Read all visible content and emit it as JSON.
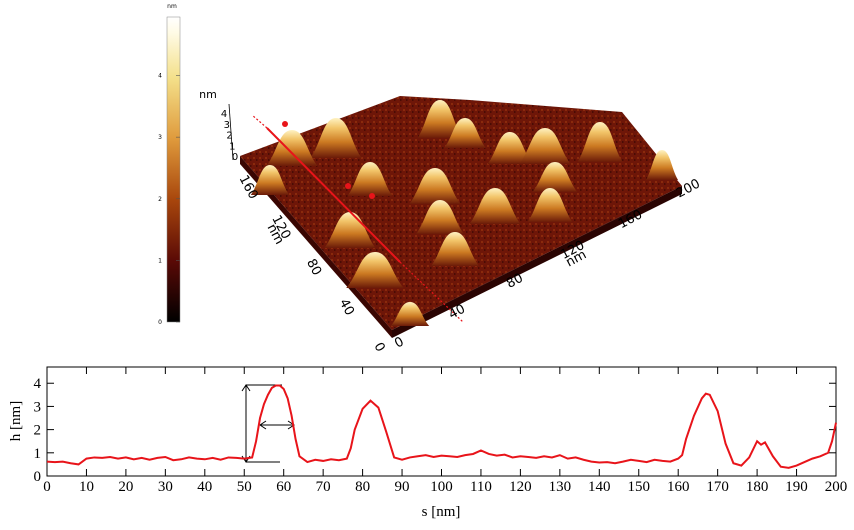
{
  "chart_data": [
    {
      "type": "surface3d",
      "colorbar": {
        "unit": "nm",
        "lim": [
          0,
          4.95
        ],
        "ticks": [
          0,
          1,
          2,
          3,
          4
        ]
      },
      "x_axis": {
        "label": "nm",
        "ticks": [
          0,
          40,
          80,
          120,
          160,
          200
        ]
      },
      "y_axis": {
        "label": "nm",
        "ticks": [
          0,
          40,
          80,
          120,
          160
        ]
      },
      "z_axis": {
        "label": "nm",
        "ticks": [
          0,
          1,
          2,
          3,
          4
        ]
      }
    },
    {
      "type": "line",
      "xlabel": "s [nm]",
      "ylabel": "h [nm]",
      "color": "#e8141a",
      "xlim": [
        0,
        200
      ],
      "ylim": [
        0,
        4.7
      ],
      "xticks": [
        0,
        10,
        20,
        30,
        40,
        50,
        60,
        70,
        80,
        90,
        100,
        110,
        120,
        130,
        140,
        150,
        160,
        170,
        180,
        190,
        200
      ],
      "yticks": [
        0,
        1,
        2,
        3,
        4
      ],
      "x": [
        0,
        2,
        4,
        6,
        8,
        10,
        12,
        14,
        16,
        18,
        20,
        22,
        24,
        26,
        28,
        30,
        32,
        34,
        36,
        38,
        40,
        42,
        44,
        46,
        48,
        50,
        52,
        53,
        54,
        55,
        56,
        57,
        58,
        59,
        60,
        61,
        62,
        63,
        64,
        66,
        68,
        70,
        72,
        74,
        76,
        77,
        78,
        80,
        82,
        84,
        86,
        88,
        90,
        92,
        94,
        96,
        98,
        100,
        102,
        104,
        106,
        108,
        110,
        112,
        114,
        116,
        118,
        120,
        122,
        124,
        126,
        128,
        130,
        132,
        134,
        136,
        138,
        140,
        142,
        144,
        146,
        148,
        150,
        152,
        154,
        156,
        158,
        160,
        161,
        162,
        164,
        166,
        167,
        168,
        170,
        172,
        174,
        176,
        178,
        180,
        181,
        182,
        184,
        186,
        188,
        190,
        192,
        194,
        196,
        198,
        199,
        200
      ],
      "values": [
        0.62,
        0.6,
        0.62,
        0.55,
        0.5,
        0.75,
        0.8,
        0.78,
        0.82,
        0.75,
        0.8,
        0.72,
        0.78,
        0.7,
        0.78,
        0.82,
        0.68,
        0.72,
        0.8,
        0.75,
        0.72,
        0.78,
        0.7,
        0.8,
        0.78,
        0.75,
        0.8,
        1.5,
        2.5,
        3.1,
        3.5,
        3.8,
        3.9,
        3.9,
        3.75,
        3.35,
        2.6,
        1.6,
        0.85,
        0.6,
        0.7,
        0.65,
        0.72,
        0.68,
        0.75,
        1.2,
        2.0,
        2.9,
        3.25,
        2.95,
        1.9,
        0.8,
        0.7,
        0.8,
        0.85,
        0.9,
        0.82,
        0.88,
        0.85,
        0.82,
        0.9,
        0.95,
        1.1,
        0.95,
        0.88,
        0.92,
        0.8,
        0.85,
        0.82,
        0.78,
        0.85,
        0.8,
        0.9,
        0.75,
        0.8,
        0.7,
        0.62,
        0.58,
        0.6,
        0.55,
        0.62,
        0.7,
        0.65,
        0.6,
        0.7,
        0.65,
        0.62,
        0.75,
        0.9,
        1.6,
        2.6,
        3.35,
        3.55,
        3.5,
        2.8,
        1.4,
        0.55,
        0.45,
        0.8,
        1.5,
        1.35,
        1.45,
        0.85,
        0.4,
        0.35,
        0.45,
        0.6,
        0.75,
        0.85,
        1.0,
        1.5,
        2.3
      ]
    }
  ]
}
